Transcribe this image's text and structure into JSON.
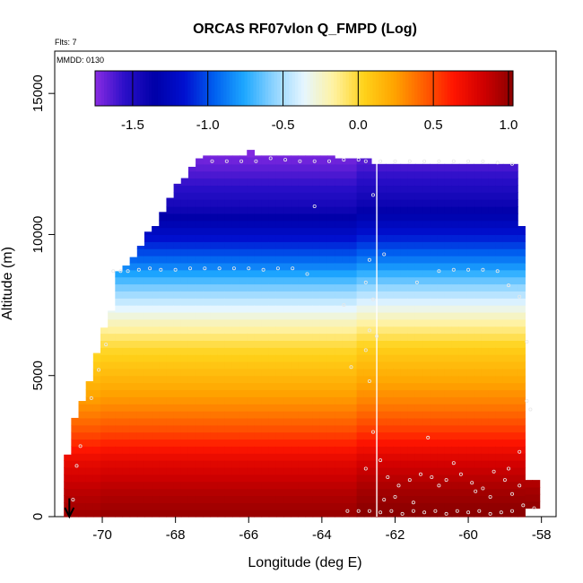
{
  "chart_data": {
    "type": "heatmap",
    "title": "ORCAS RF07vlon Q_FMPD (Log)",
    "annotations": {
      "flights": "Flts: 7",
      "mmdd": "MMDD: 0130"
    },
    "xlabel": "Longitude (deg E)",
    "ylabel": "Altitude (m)",
    "xlim": [
      -71.3,
      -57.6
    ],
    "ylim": [
      0,
      16500
    ],
    "x_ticks": [
      -70,
      -68,
      -66,
      -64,
      -62,
      -60,
      -58
    ],
    "x_tick_labels": [
      "-70",
      "-68",
      "-66",
      "-64",
      "-62",
      "-60",
      "-58"
    ],
    "y_ticks": [
      0,
      5000,
      10000,
      15000
    ],
    "y_tick_labels": [
      "0",
      "5000",
      "10000",
      "15000"
    ],
    "colorbar": {
      "min": -1.75,
      "max": 1.03,
      "ticks": [
        -1.5,
        -1.0,
        -0.5,
        0.0,
        0.5,
        1.0
      ],
      "tick_labels": [
        "-1.5",
        "-1.0",
        "-0.5",
        "0.0",
        "0.5",
        "1.0"
      ],
      "colors": [
        "#8a2be2",
        "#2a0fc8",
        "#0000a8",
        "#0010d0",
        "#0060f0",
        "#1ea8ff",
        "#8fd4ff",
        "#e6f6ff",
        "#fff2a0",
        "#ffd21a",
        "#ffa500",
        "#ff6000",
        "#ff1500",
        "#d00000",
        "#8b0000"
      ]
    },
    "vertical_line_lon": -62.5,
    "arrow_lon": -70.9,
    "field": {
      "columns_lon": [
        -70.95,
        -70.75,
        -70.55,
        -70.35,
        -70.15,
        -69.95,
        -69.75,
        -69.55,
        -69.35,
        -69.15,
        -68.95,
        -68.75,
        -68.55,
        -68.35,
        -68.15,
        -67.95,
        -67.75,
        -67.55,
        -67.35,
        -67.15,
        -66.95,
        -66.75,
        -66.55,
        -66.35,
        -66.15,
        -65.95,
        -65.75,
        -65.55,
        -65.35,
        -65.15,
        -64.95,
        -64.75,
        -64.55,
        -64.35,
        -64.15,
        -63.95,
        -63.75,
        -63.55,
        -63.35,
        -63.15,
        -62.95,
        -62.75,
        -62.55,
        -62.35,
        -62.15,
        -61.95,
        -61.75,
        -61.55,
        -61.35,
        -61.15,
        -60.95,
        -60.75,
        -60.55,
        -60.35,
        -60.15,
        -59.95,
        -59.75,
        -59.55,
        -59.35,
        -59.15,
        -58.95,
        -58.75,
        -58.55,
        -58.35,
        -58.15
      ],
      "column_top_m": [
        2200,
        3500,
        4100,
        4800,
        5800,
        6700,
        7300,
        8700,
        8900,
        9200,
        9600,
        10100,
        10300,
        10800,
        11300,
        11800,
        12000,
        12400,
        12700,
        12800,
        12800,
        12800,
        12800,
        12800,
        12800,
        13000,
        12800,
        12800,
        12800,
        12800,
        12800,
        12800,
        12800,
        12800,
        12800,
        12800,
        12800,
        12700,
        12700,
        12700,
        12700,
        12700,
        12500,
        12500,
        12500,
        12500,
        12500,
        12500,
        12500,
        12500,
        12500,
        12500,
        12500,
        12500,
        12500,
        12500,
        12500,
        12500,
        12500,
        12500,
        12500,
        12500,
        10300,
        1300,
        1300
      ],
      "column_bottom_m": [
        0,
        0,
        0,
        0,
        0,
        0,
        0,
        0,
        0,
        0,
        0,
        0,
        0,
        0,
        0,
        0,
        0,
        0,
        0,
        0,
        0,
        0,
        0,
        0,
        0,
        0,
        0,
        0,
        0,
        0,
        0,
        0,
        0,
        0,
        0,
        0,
        0,
        0,
        0,
        0,
        0,
        0,
        0,
        0,
        0,
        0,
        0,
        0,
        0,
        0,
        0,
        0,
        0,
        0,
        0,
        0,
        0,
        0,
        0,
        0,
        0,
        0,
        0,
        300,
        300
      ],
      "profile_altitude_m": [
        0,
        1000,
        2000,
        3000,
        4000,
        5000,
        6000,
        7000,
        8000,
        9000,
        10000,
        11000,
        12000,
        13000
      ],
      "profile_log_q": [
        1.0,
        0.9,
        0.75,
        0.5,
        0.3,
        0.15,
        0.0,
        -0.25,
        -0.55,
        -0.9,
        -1.2,
        -1.45,
        -1.6,
        -1.75
      ]
    },
    "sample_points": [
      [
        -70.8,
        600
      ],
      [
        -70.7,
        1800
      ],
      [
        -70.6,
        2500
      ],
      [
        -70.3,
        4200
      ],
      [
        -70.1,
        5200
      ],
      [
        -69.9,
        6100
      ],
      [
        -69.7,
        8700
      ],
      [
        -69.5,
        8700
      ],
      [
        -69.3,
        8700
      ],
      [
        -69.0,
        8750
      ],
      [
        -68.7,
        8800
      ],
      [
        -68.4,
        8750
      ],
      [
        -68.0,
        8750
      ],
      [
        -67.6,
        8800
      ],
      [
        -67.2,
        8800
      ],
      [
        -66.8,
        8800
      ],
      [
        -66.4,
        8800
      ],
      [
        -66.0,
        8800
      ],
      [
        -65.6,
        8750
      ],
      [
        -65.2,
        8800
      ],
      [
        -64.8,
        8800
      ],
      [
        -64.4,
        8600
      ],
      [
        -67.0,
        12600
      ],
      [
        -66.6,
        12600
      ],
      [
        -66.2,
        12600
      ],
      [
        -65.8,
        12600
      ],
      [
        -65.4,
        12700
      ],
      [
        -65.0,
        12650
      ],
      [
        -64.6,
        12600
      ],
      [
        -64.2,
        12600
      ],
      [
        -63.8,
        12600
      ],
      [
        -63.4,
        12650
      ],
      [
        -63.0,
        12650
      ],
      [
        -62.8,
        12600
      ],
      [
        -62.4,
        12600
      ],
      [
        -62.0,
        12600
      ],
      [
        -61.6,
        12600
      ],
      [
        -61.2,
        12600
      ],
      [
        -60.8,
        12600
      ],
      [
        -60.4,
        12600
      ],
      [
        -60.0,
        12600
      ],
      [
        -59.6,
        12600
      ],
      [
        -59.2,
        12550
      ],
      [
        -58.8,
        12500
      ],
      [
        -64.2,
        11000
      ],
      [
        -62.6,
        11400
      ],
      [
        -62.3,
        9300
      ],
      [
        -61.4,
        8300
      ],
      [
        -60.8,
        8700
      ],
      [
        -60.4,
        8750
      ],
      [
        -60.0,
        8750
      ],
      [
        -59.6,
        8750
      ],
      [
        -59.2,
        8700
      ],
      [
        -58.9,
        8200
      ],
      [
        -58.6,
        7800
      ],
      [
        -58.4,
        6200
      ],
      [
        -58.4,
        4100
      ],
      [
        -58.3,
        3800
      ],
      [
        -62.8,
        8300
      ],
      [
        -63.4,
        7500
      ],
      [
        -62.7,
        6600
      ],
      [
        -62.5,
        6400
      ],
      [
        -62.8,
        5900
      ],
      [
        -62.7,
        4800
      ],
      [
        -62.6,
        3000
      ],
      [
        -62.8,
        1700
      ],
      [
        -62.4,
        2000
      ],
      [
        -62.2,
        1400
      ],
      [
        -61.9,
        1100
      ],
      [
        -61.6,
        1300
      ],
      [
        -61.3,
        1500
      ],
      [
        -61.0,
        1400
      ],
      [
        -60.8,
        1100
      ],
      [
        -60.6,
        1300
      ],
      [
        -60.2,
        1500
      ],
      [
        -59.9,
        1200
      ],
      [
        -59.6,
        1000
      ],
      [
        -59.3,
        1600
      ],
      [
        -59.0,
        1300
      ],
      [
        -58.8,
        800
      ],
      [
        -58.6,
        1100
      ],
      [
        -58.5,
        400
      ],
      [
        -58.2,
        300
      ],
      [
        -63.3,
        200
      ],
      [
        -63.0,
        200
      ],
      [
        -62.7,
        200
      ],
      [
        -62.4,
        150
      ],
      [
        -62.1,
        200
      ],
      [
        -61.8,
        100
      ],
      [
        -61.5,
        200
      ],
      [
        -61.2,
        150
      ],
      [
        -60.9,
        200
      ],
      [
        -60.6,
        100
      ],
      [
        -60.3,
        200
      ],
      [
        -60.0,
        150
      ],
      [
        -59.7,
        200
      ],
      [
        -59.4,
        100
      ],
      [
        -59.1,
        150
      ],
      [
        -58.8,
        200
      ],
      [
        -62.3,
        600
      ],
      [
        -62.0,
        700
      ],
      [
        -61.5,
        500
      ],
      [
        -61.1,
        2800
      ],
      [
        -60.4,
        1900
      ],
      [
        -59.8,
        900
      ],
      [
        -59.4,
        700
      ],
      [
        -58.9,
        1700
      ],
      [
        -58.6,
        2300
      ],
      [
        -62.7,
        9100
      ],
      [
        -62.6,
        7700
      ],
      [
        -63.2,
        5300
      ]
    ]
  }
}
